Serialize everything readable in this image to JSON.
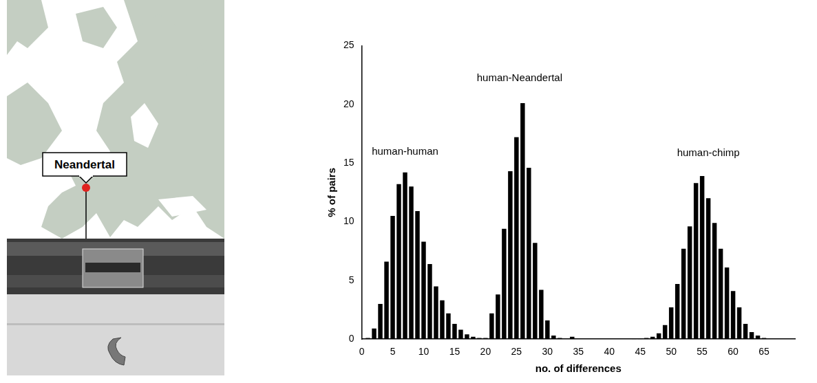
{
  "map": {
    "label": "Neandertal"
  },
  "chart_data": {
    "type": "bar",
    "x_label": "no. of differences",
    "y_label": "% of pairs",
    "x": [
      1,
      2,
      3,
      4,
      5,
      6,
      7,
      8,
      9,
      10,
      11,
      12,
      13,
      14,
      15,
      16,
      17,
      18,
      19,
      20,
      21,
      22,
      23,
      24,
      25,
      26,
      27,
      28,
      29,
      30,
      31,
      32,
      33,
      34,
      44,
      45,
      46,
      47,
      48,
      49,
      50,
      51,
      52,
      53,
      54,
      55,
      56,
      57,
      58,
      59,
      60,
      61,
      62,
      63,
      64,
      65
    ],
    "values": [
      0.1,
      0.9,
      3.0,
      6.6,
      10.5,
      13.2,
      14.2,
      13.0,
      10.9,
      8.3,
      6.4,
      4.5,
      3.3,
      2.2,
      1.3,
      0.8,
      0.4,
      0.2,
      0.1,
      0.1,
      2.2,
      3.8,
      9.4,
      14.3,
      17.2,
      20.1,
      14.6,
      8.2,
      4.2,
      1.6,
      0.3,
      0.1,
      0,
      0.2,
      0.05,
      0.05,
      0.1,
      0.2,
      0.5,
      1.2,
      2.7,
      4.7,
      7.7,
      9.6,
      13.3,
      13.9,
      12.0,
      9.9,
      7.7,
      6.1,
      4.1,
      2.7,
      1.3,
      0.6,
      0.3,
      0.1
    ],
    "color": "#000000",
    "xlim": [
      0,
      70
    ],
    "xticks": [
      0,
      5,
      10,
      15,
      20,
      25,
      30,
      35,
      40,
      45,
      50,
      55,
      60,
      65
    ],
    "ylim": [
      0,
      25
    ],
    "yticks": [
      0,
      5,
      10,
      15,
      20,
      25
    ],
    "grid": false,
    "annotations": [
      {
        "text": "human-human",
        "x": 7,
        "y": 15.5
      },
      {
        "text": "human-Neandertal",
        "x": 25.5,
        "y": 21.8
      },
      {
        "text": "human-chimp",
        "x": 56,
        "y": 15.4
      }
    ]
  }
}
